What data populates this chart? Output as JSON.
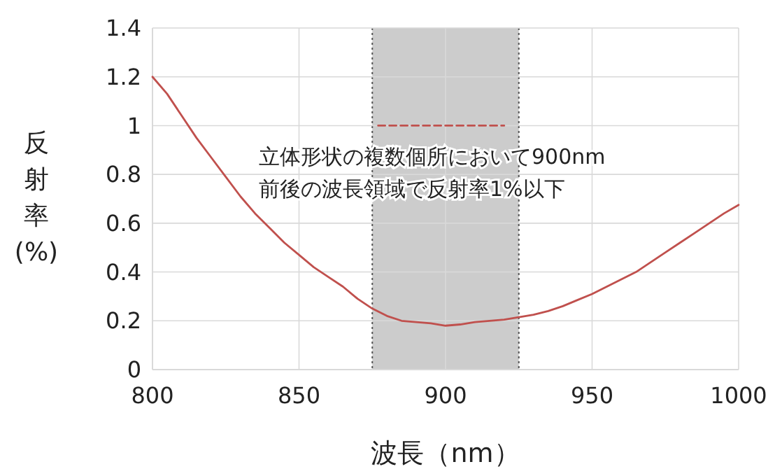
{
  "chart_data": {
    "type": "line",
    "xlabel": "波長（nm）",
    "ylabel": "反射率(%)",
    "xlim": [
      800,
      1000
    ],
    "xticks": [
      800,
      850,
      900,
      950,
      1000
    ],
    "ylim": [
      0,
      1.4
    ],
    "yticks": [
      0,
      0.2,
      0.4,
      0.6,
      0.8,
      1,
      1.2,
      1.4
    ],
    "grid": true,
    "bands": [
      {
        "axis": "x",
        "from": 875,
        "to": 925,
        "color": "#cccccc"
      }
    ],
    "ref_lines": [
      {
        "axis": "x",
        "value": 875,
        "color": "#555555",
        "line_style": "dotted"
      },
      {
        "axis": "x",
        "value": 925,
        "color": "#555555",
        "line_style": "dotted"
      }
    ],
    "annotations": [
      "立体形状の複数個所において900nm\n前後の波長領域で反射率1%以下"
    ],
    "series": [
      {
        "color": "#c0504d",
        "line_style": "solid",
        "x": [
          800,
          805,
          810,
          815,
          820,
          825,
          830,
          835,
          840,
          845,
          850,
          855,
          860,
          865,
          870,
          875,
          880,
          885,
          890,
          895,
          900,
          905,
          910,
          915,
          920,
          925,
          930,
          935,
          940,
          945,
          950,
          955,
          960,
          965,
          970,
          975,
          980,
          985,
          990,
          995,
          1000
        ],
        "values": [
          1.2,
          1.13,
          1.04,
          0.95,
          0.87,
          0.79,
          0.71,
          0.64,
          0.58,
          0.52,
          0.47,
          0.42,
          0.38,
          0.34,
          0.29,
          0.25,
          0.22,
          0.2,
          0.195,
          0.19,
          0.18,
          0.185,
          0.195,
          0.2,
          0.205,
          0.215,
          0.225,
          0.24,
          0.26,
          0.285,
          0.31,
          0.34,
          0.37,
          0.4,
          0.44,
          0.48,
          0.52,
          0.56,
          0.6,
          0.64,
          0.675
        ]
      },
      {
        "color": "#c0504d",
        "line_style": "dashed",
        "x": [
          877,
          920
        ],
        "values": [
          1,
          1
        ]
      }
    ]
  }
}
